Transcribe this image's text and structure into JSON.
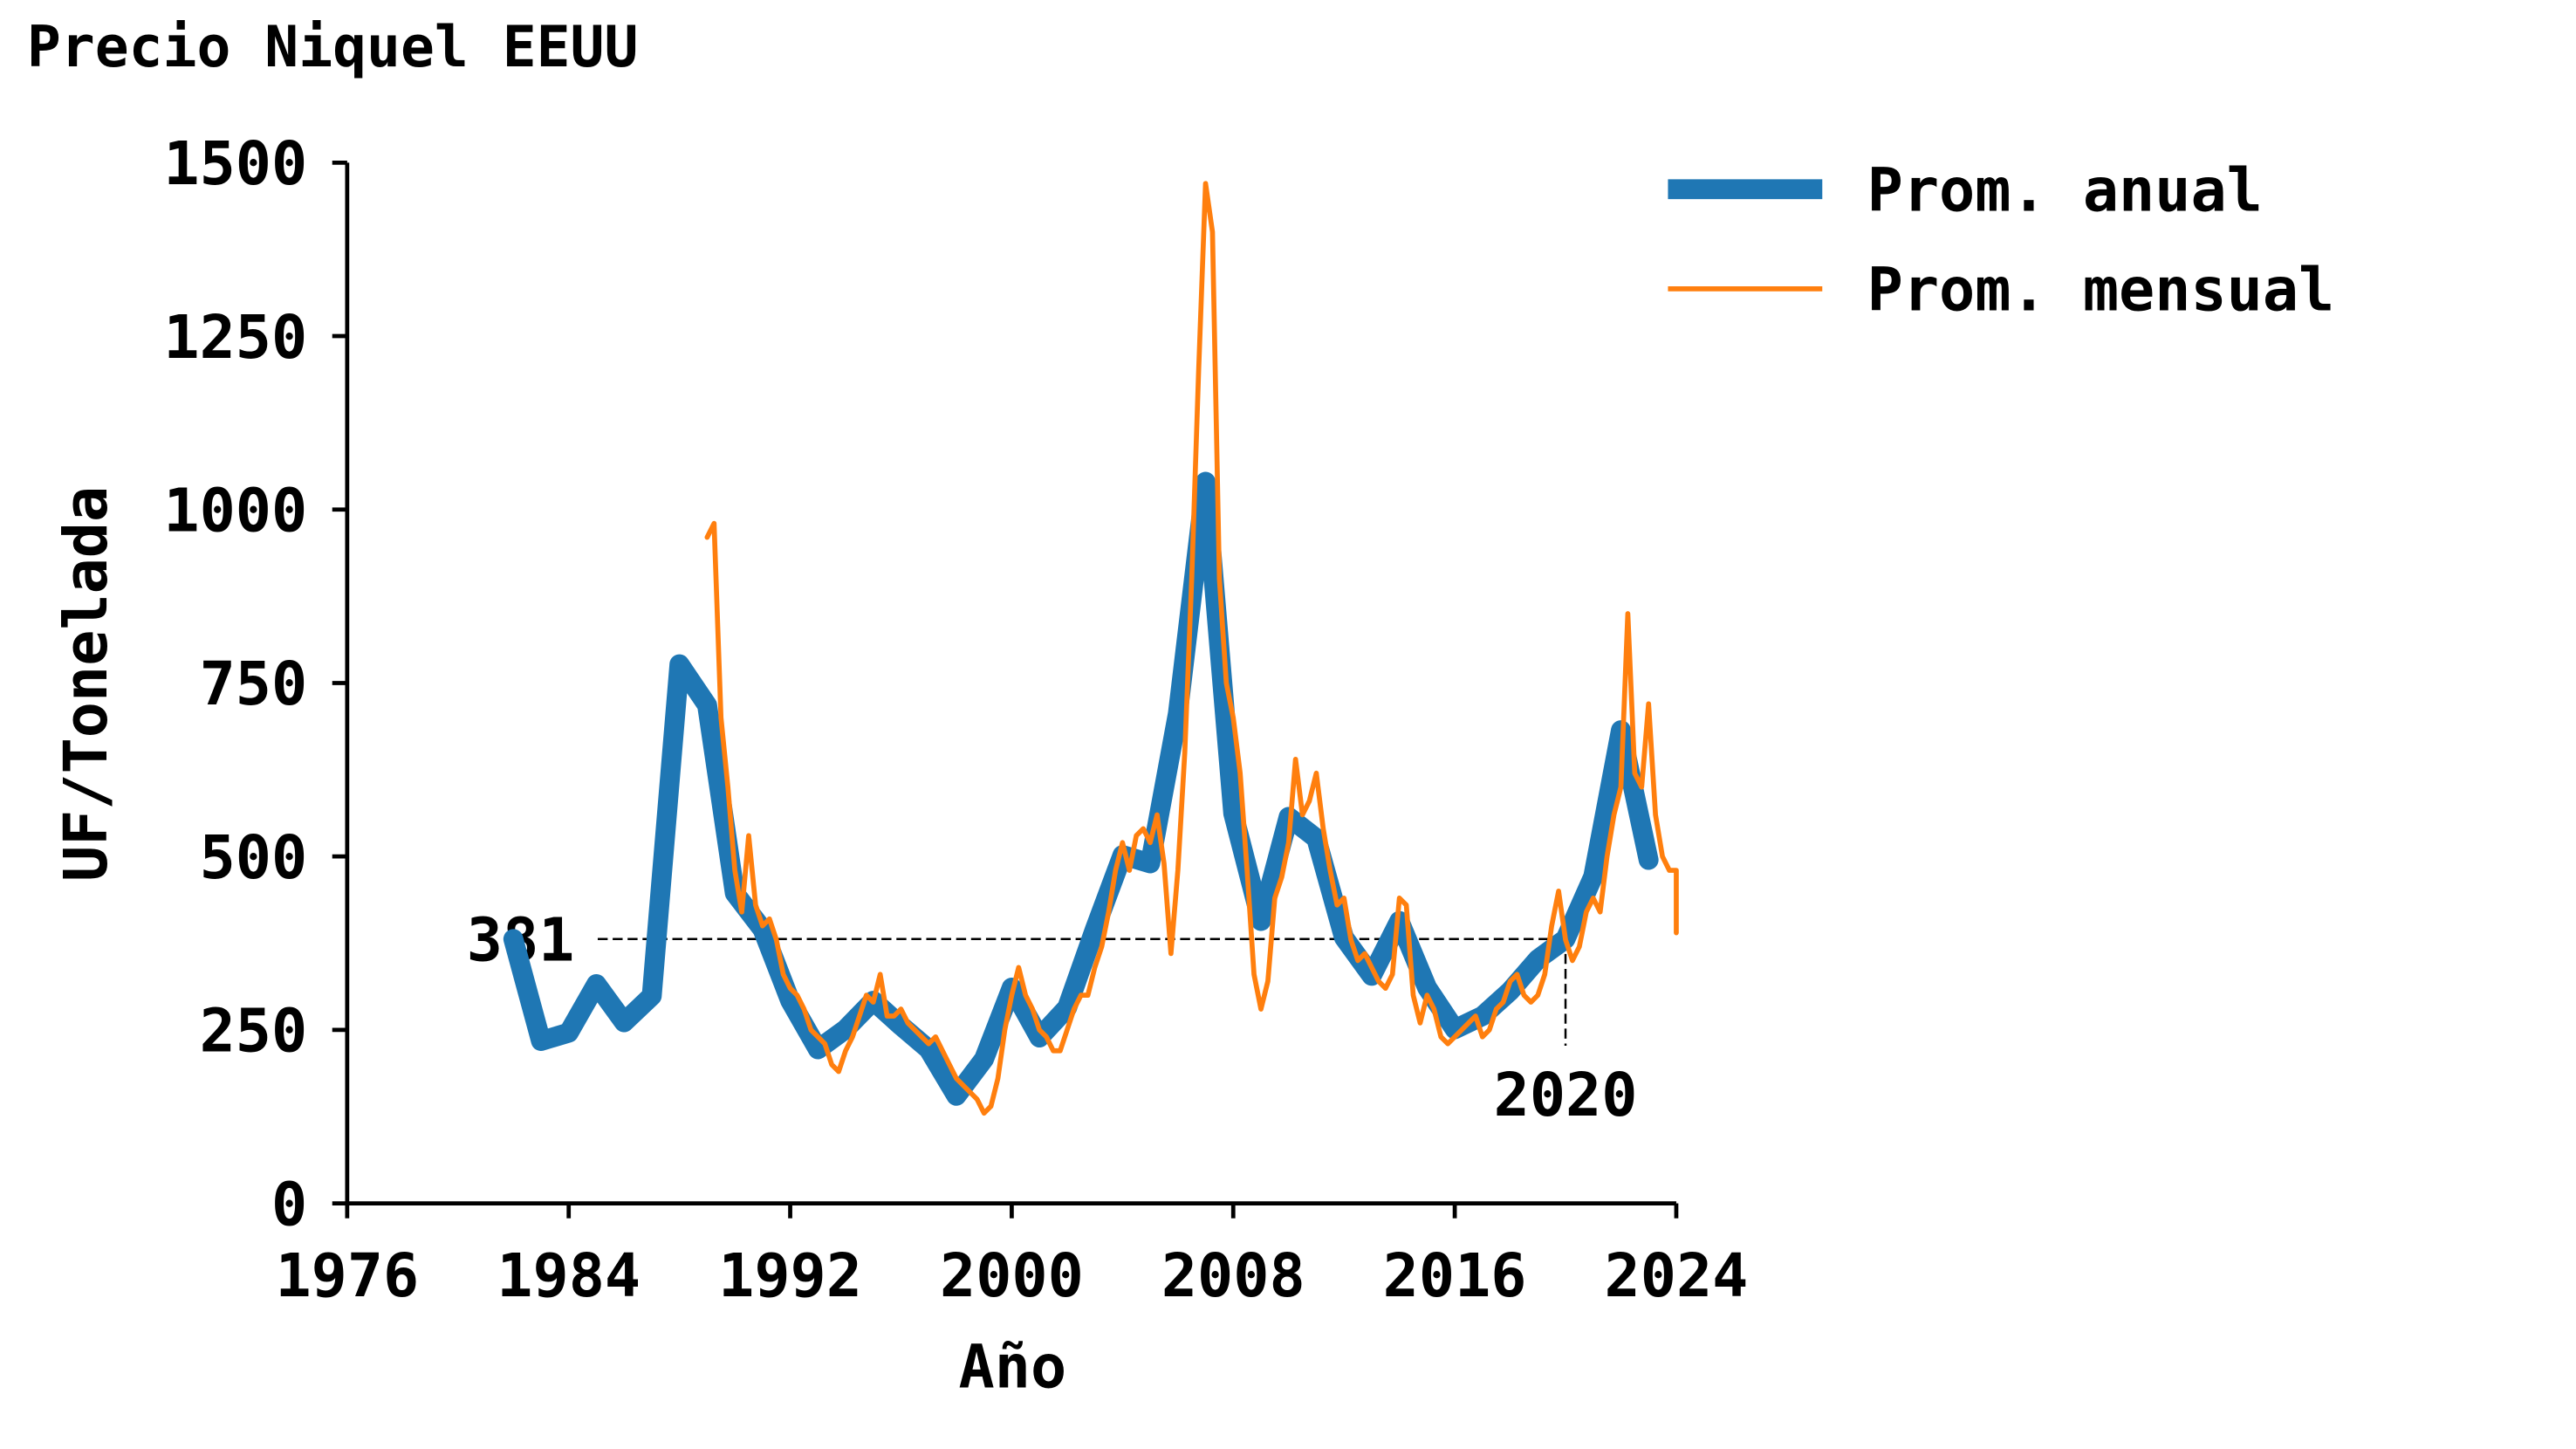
{
  "chart_data": {
    "type": "line",
    "title": "Precio Niquel EEUU",
    "xlabel": "Año",
    "ylabel": "UF/Tonelada",
    "xlim": [
      1976,
      2024
    ],
    "xticks": [
      1976,
      1984,
      1992,
      2000,
      2008,
      2016,
      2024
    ],
    "ylim": [
      0,
      1500
    ],
    "yticks": [
      0,
      250,
      500,
      750,
      1000,
      1250,
      1500
    ],
    "grid": false,
    "legend": "upper right outside",
    "annotation": {
      "x": 2020,
      "y": 381
    },
    "series": [
      {
        "name": "Prom. anual",
        "color": "#1f77b4",
        "x": [
          1982,
          1983,
          1984,
          1985,
          1986,
          1987,
          1988,
          1989,
          1990,
          1991,
          1992,
          1993,
          1994,
          1995,
          1996,
          1997,
          1998,
          1999,
          2000,
          2001,
          2002,
          2003,
          2004,
          2005,
          2006,
          2007,
          2008,
          2009,
          2010,
          2011,
          2012,
          2013,
          2014,
          2015,
          2016,
          2017,
          2018,
          2019,
          2020,
          2021,
          2022,
          2023
        ],
        "values": [
          381,
          234,
          246,
          316,
          261,
          299,
          777,
          718,
          447,
          395,
          292,
          222,
          251,
          292,
          256,
          222,
          155,
          208,
          311,
          239,
          282,
          395,
          502,
          490,
          706,
          1040,
          562,
          407,
          557,
          526,
          383,
          328,
          407,
          311,
          251,
          270,
          306,
          352,
          381,
          471,
          682,
          495
        ]
      },
      {
        "name": "Prom. mensual",
        "color": "#ff7f0e",
        "x": [
          1989,
          1989.25,
          1989.5,
          1989.75,
          1990,
          1990.25,
          1990.5,
          1990.75,
          1991,
          1991.25,
          1991.5,
          1991.75,
          1992,
          1992.25,
          1992.5,
          1992.75,
          1993,
          1993.25,
          1993.5,
          1993.75,
          1994,
          1994.25,
          1994.5,
          1994.75,
          1995,
          1995.25,
          1995.5,
          1995.75,
          1996,
          1996.25,
          1996.5,
          1996.75,
          1997,
          1997.25,
          1997.5,
          1997.75,
          1998,
          1998.25,
          1998.5,
          1998.75,
          1999,
          1999.25,
          1999.5,
          1999.75,
          2000,
          2000.25,
          2000.5,
          2000.75,
          2001,
          2001.25,
          2001.5,
          2001.75,
          2002,
          2002.25,
          2002.5,
          2002.75,
          2003,
          2003.25,
          2003.5,
          2003.75,
          2004,
          2004.25,
          2004.5,
          2004.75,
          2005,
          2005.25,
          2005.5,
          2005.75,
          2006,
          2006.25,
          2006.5,
          2006.75,
          2007,
          2007.25,
          2007.5,
          2007.75,
          2008,
          2008.25,
          2008.5,
          2008.75,
          2009,
          2009.25,
          2009.5,
          2009.75,
          2010,
          2010.25,
          2010.5,
          2010.75,
          2011,
          2011.25,
          2011.5,
          2011.75,
          2012,
          2012.25,
          2012.5,
          2012.75,
          2013,
          2013.25,
          2013.5,
          2013.75,
          2014,
          2014.25,
          2014.5,
          2014.75,
          2015,
          2015.25,
          2015.5,
          2015.75,
          2016,
          2016.25,
          2016.5,
          2016.75,
          2017,
          2017.25,
          2017.5,
          2017.75,
          2018,
          2018.25,
          2018.5,
          2018.75,
          2019,
          2019.25,
          2019.5,
          2019.75,
          2020,
          2020.25,
          2020.5,
          2020.75,
          2021,
          2021.25,
          2021.5,
          2021.75,
          2022,
          2022.25,
          2022.5,
          2022.75,
          2023,
          2023.25,
          2023.5,
          2023.75,
          2024,
          2024
        ],
        "values": [
          960,
          980,
          700,
          600,
          480,
          420,
          530,
          430,
          400,
          410,
          380,
          330,
          310,
          300,
          280,
          250,
          240,
          230,
          200,
          190,
          220,
          240,
          270,
          300,
          290,
          330,
          270,
          270,
          280,
          260,
          250,
          240,
          230,
          240,
          220,
          200,
          180,
          170,
          160,
          150,
          130,
          140,
          180,
          250,
          300,
          340,
          300,
          280,
          250,
          240,
          220,
          220,
          250,
          280,
          300,
          300,
          340,
          370,
          420,
          480,
          520,
          480,
          530,
          540,
          520,
          560,
          490,
          360,
          480,
          650,
          900,
          1200,
          1470,
          1400,
          900,
          750,
          700,
          620,
          480,
          330,
          280,
          320,
          440,
          470,
          520,
          640,
          560,
          580,
          620,
          540,
          480,
          430,
          440,
          380,
          350,
          360,
          340,
          320,
          310,
          330,
          440,
          430,
          300,
          260,
          300,
          280,
          240,
          230,
          240,
          250,
          260,
          270,
          240,
          250,
          280,
          290,
          320,
          330,
          300,
          290,
          300,
          330,
          400,
          450,
          380,
          350,
          370,
          420,
          440,
          420,
          500,
          560,
          600,
          850,
          620,
          600,
          720,
          560,
          500,
          480,
          480,
          390
        ]
      }
    ]
  }
}
